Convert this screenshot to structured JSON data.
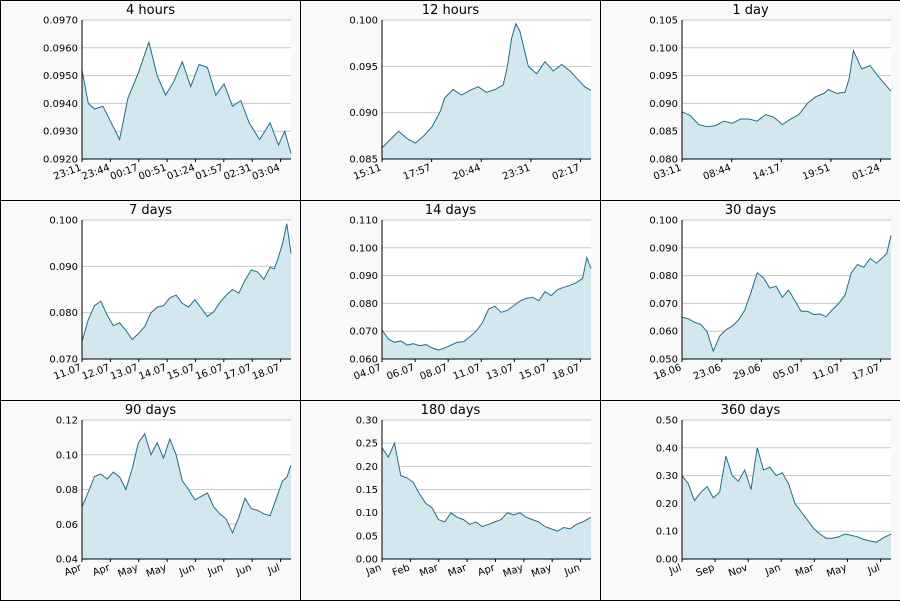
{
  "colors": {
    "line": "#1f6e8c",
    "fill": "#d4e6ee",
    "grid": "#c8c8c8",
    "plot_bg": "#f9f9f9",
    "border": "#000000"
  },
  "chart_data": [
    {
      "type": "area",
      "title": "4 hours",
      "ylim": [
        0.092,
        0.097
      ],
      "yticks": [
        "0.0920",
        "0.0930",
        "0.0940",
        "0.0950",
        "0.0960",
        "0.0970"
      ],
      "xticks": [
        "23:11",
        "23:44",
        "00:17",
        "00:51",
        "01:24",
        "01:57",
        "02:31",
        "03:04"
      ],
      "grid": true,
      "xlim": [
        0,
        100
      ],
      "series": [
        {
          "x": [
            0,
            3,
            6,
            10,
            14,
            18,
            22,
            27,
            32,
            36,
            40,
            44,
            48,
            52,
            56,
            60,
            64,
            68,
            72,
            76,
            80,
            85,
            90,
            94,
            97,
            100
          ],
          "y": [
            0.0952,
            0.094,
            0.0938,
            0.0939,
            0.0933,
            0.0927,
            0.0942,
            0.0951,
            0.0962,
            0.095,
            0.0943,
            0.0948,
            0.0955,
            0.0946,
            0.0954,
            0.0953,
            0.0943,
            0.0947,
            0.0939,
            0.0941,
            0.0933,
            0.0927,
            0.0933,
            0.0925,
            0.093,
            0.0922
          ]
        }
      ]
    },
    {
      "type": "area",
      "title": "12 hours",
      "ylim": [
        0.085,
        0.1
      ],
      "yticks": [
        "0.085",
        "0.090",
        "0.095",
        "0.100"
      ],
      "xticks": [
        "15:11",
        "17:57",
        "20:44",
        "23:31",
        "02:17"
      ],
      "grid": true,
      "xlim": [
        0,
        100
      ],
      "series": [
        {
          "x": [
            0,
            4,
            8,
            12,
            16,
            20,
            24,
            28,
            30,
            34,
            38,
            42,
            46,
            50,
            54,
            58,
            60,
            62,
            64,
            66,
            70,
            74,
            78,
            82,
            86,
            90,
            94,
            97,
            100
          ],
          "y": [
            0.0862,
            0.0871,
            0.088,
            0.0872,
            0.0867,
            0.0875,
            0.0885,
            0.0902,
            0.0916,
            0.0925,
            0.0919,
            0.0924,
            0.0928,
            0.0922,
            0.0925,
            0.093,
            0.095,
            0.098,
            0.0996,
            0.0988,
            0.095,
            0.0942,
            0.0955,
            0.0945,
            0.0952,
            0.0945,
            0.0935,
            0.0928,
            0.0924
          ]
        }
      ]
    },
    {
      "type": "area",
      "title": "1 day",
      "ylim": [
        0.08,
        0.105
      ],
      "yticks": [
        "0.080",
        "0.085",
        "0.090",
        "0.095",
        "0.100",
        "0.105"
      ],
      "xticks": [
        "03:11",
        "08:44",
        "14:17",
        "19:51",
        "01:24"
      ],
      "grid": true,
      "xlim": [
        0,
        100
      ],
      "series": [
        {
          "x": [
            0,
            4,
            8,
            12,
            16,
            20,
            24,
            28,
            32,
            36,
            40,
            44,
            48,
            52,
            56,
            60,
            64,
            68,
            70,
            74,
            78,
            80,
            82,
            86,
            90,
            94,
            97,
            100
          ],
          "y": [
            0.0885,
            0.0878,
            0.0862,
            0.0858,
            0.086,
            0.0868,
            0.0864,
            0.0872,
            0.0872,
            0.0868,
            0.088,
            0.0875,
            0.0862,
            0.0872,
            0.088,
            0.09,
            0.0912,
            0.0918,
            0.0925,
            0.0918,
            0.092,
            0.0945,
            0.0995,
            0.0962,
            0.0968,
            0.0948,
            0.0935,
            0.0922
          ]
        }
      ]
    },
    {
      "type": "area",
      "title": "7 days",
      "ylim": [
        0.07,
        0.1
      ],
      "yticks": [
        "0.070",
        "0.080",
        "0.090",
        "0.100"
      ],
      "xticks": [
        "11.07",
        "12.07",
        "13.07",
        "14.07",
        "15.07",
        "16.07",
        "17.07",
        "18.07"
      ],
      "grid": true,
      "xlim": [
        0,
        100
      ],
      "series": [
        {
          "x": [
            0,
            3,
            6,
            9,
            12,
            15,
            18,
            21,
            24,
            27,
            30,
            33,
            36,
            39,
            42,
            45,
            48,
            51,
            54,
            57,
            60,
            63,
            66,
            69,
            72,
            75,
            78,
            81,
            84,
            87,
            90,
            92,
            94,
            96,
            98,
            100
          ],
          "y": [
            0.0738,
            0.0785,
            0.0815,
            0.0825,
            0.0795,
            0.0772,
            0.0778,
            0.0762,
            0.0742,
            0.0755,
            0.077,
            0.08,
            0.0812,
            0.0815,
            0.0832,
            0.0838,
            0.082,
            0.0812,
            0.0828,
            0.081,
            0.0792,
            0.0802,
            0.0822,
            0.0838,
            0.085,
            0.0842,
            0.087,
            0.0892,
            0.0888,
            0.0872,
            0.0898,
            0.0895,
            0.092,
            0.095,
            0.0992,
            0.0928
          ]
        }
      ]
    },
    {
      "type": "area",
      "title": "14 days",
      "ylim": [
        0.06,
        0.11
      ],
      "yticks": [
        "0.060",
        "0.070",
        "0.080",
        "0.090",
        "0.100",
        "0.110"
      ],
      "xticks": [
        "04.07",
        "06.07",
        "08.07",
        "11.07",
        "13.07",
        "15.07",
        "18.07"
      ],
      "grid": true,
      "xlim": [
        0,
        100
      ],
      "series": [
        {
          "x": [
            0,
            3,
            6,
            9,
            12,
            15,
            18,
            21,
            24,
            27,
            30,
            33,
            36,
            39,
            42,
            45,
            48,
            51,
            54,
            57,
            60,
            63,
            66,
            69,
            72,
            75,
            78,
            81,
            84,
            87,
            90,
            93,
            96,
            98,
            100
          ],
          "y": [
            0.0705,
            0.0672,
            0.066,
            0.0665,
            0.065,
            0.0655,
            0.0648,
            0.0652,
            0.064,
            0.0632,
            0.064,
            0.065,
            0.066,
            0.0662,
            0.068,
            0.07,
            0.073,
            0.078,
            0.079,
            0.0768,
            0.0775,
            0.0792,
            0.0808,
            0.0818,
            0.0822,
            0.081,
            0.0842,
            0.0828,
            0.085,
            0.0858,
            0.0865,
            0.0875,
            0.089,
            0.0965,
            0.0925
          ]
        }
      ]
    },
    {
      "type": "area",
      "title": "30 days",
      "ylim": [
        0.05,
        0.1
      ],
      "yticks": [
        "0.050",
        "0.060",
        "0.070",
        "0.080",
        "0.090",
        "0.100"
      ],
      "xticks": [
        "18.06",
        "23.06",
        "29.06",
        "05.07",
        "11.07",
        "17.07"
      ],
      "grid": true,
      "xlim": [
        0,
        100
      ],
      "series": [
        {
          "x": [
            0,
            3,
            6,
            9,
            12,
            15,
            18,
            21,
            24,
            27,
            30,
            33,
            36,
            39,
            42,
            45,
            48,
            51,
            54,
            57,
            60,
            63,
            66,
            69,
            72,
            75,
            78,
            81,
            84,
            87,
            90,
            93,
            96,
            98,
            100
          ],
          "y": [
            0.065,
            0.0645,
            0.0632,
            0.0625,
            0.0598,
            0.0528,
            0.0582,
            0.0605,
            0.0618,
            0.064,
            0.0675,
            0.074,
            0.081,
            0.0792,
            0.0755,
            0.0762,
            0.0722,
            0.0748,
            0.071,
            0.0672,
            0.0672,
            0.066,
            0.0662,
            0.0652,
            0.0678,
            0.07,
            0.073,
            0.081,
            0.084,
            0.083,
            0.0862,
            0.0845,
            0.0865,
            0.088,
            0.0945
          ]
        }
      ]
    },
    {
      "type": "area",
      "title": "90 days",
      "ylim": [
        0.04,
        0.12
      ],
      "yticks": [
        "0.04",
        "0.06",
        "0.08",
        "0.10",
        "0.12"
      ],
      "xticks": [
        "Apr",
        "Apr",
        "May",
        "May",
        "Jun",
        "Jun",
        "Jun",
        "Jul"
      ],
      "grid": true,
      "xlim": [
        0,
        100
      ],
      "series": [
        {
          "x": [
            0,
            3,
            6,
            9,
            12,
            15,
            18,
            21,
            24,
            27,
            30,
            33,
            36,
            39,
            42,
            45,
            48,
            51,
            54,
            57,
            60,
            63,
            66,
            69,
            72,
            75,
            78,
            81,
            84,
            87,
            90,
            93,
            96,
            98,
            100
          ],
          "y": [
            0.07,
            0.0785,
            0.0875,
            0.089,
            0.086,
            0.09,
            0.0872,
            0.08,
            0.092,
            0.107,
            0.112,
            0.1,
            0.107,
            0.098,
            0.109,
            0.1,
            0.085,
            0.08,
            0.074,
            0.076,
            0.078,
            0.07,
            0.066,
            0.063,
            0.055,
            0.064,
            0.075,
            0.069,
            0.068,
            0.066,
            0.065,
            0.075,
            0.085,
            0.087,
            0.094
          ]
        }
      ]
    },
    {
      "type": "area",
      "title": "180 days",
      "ylim": [
        0.0,
        0.3
      ],
      "yticks": [
        "0.00",
        "0.05",
        "0.10",
        "0.15",
        "0.20",
        "0.25",
        "0.30"
      ],
      "xticks": [
        "Jan",
        "Feb",
        "Mar",
        "Mar",
        "Apr",
        "May",
        "May",
        "Jun"
      ],
      "grid": true,
      "xlim": [
        0,
        100
      ],
      "series": [
        {
          "x": [
            0,
            3,
            6,
            9,
            12,
            15,
            18,
            21,
            24,
            27,
            30,
            33,
            36,
            39,
            42,
            45,
            48,
            51,
            54,
            57,
            60,
            63,
            66,
            69,
            72,
            75,
            78,
            81,
            84,
            87,
            90,
            93,
            96,
            100
          ],
          "y": [
            0.24,
            0.22,
            0.25,
            0.18,
            0.175,
            0.165,
            0.14,
            0.12,
            0.11,
            0.085,
            0.08,
            0.1,
            0.09,
            0.085,
            0.075,
            0.08,
            0.07,
            0.075,
            0.08,
            0.085,
            0.1,
            0.095,
            0.1,
            0.09,
            0.085,
            0.08,
            0.07,
            0.065,
            0.06,
            0.068,
            0.065,
            0.075,
            0.08,
            0.09
          ]
        }
      ]
    },
    {
      "type": "area",
      "title": "360 days",
      "ylim": [
        0.0,
        0.5
      ],
      "yticks": [
        "0.00",
        "0.10",
        "0.20",
        "0.30",
        "0.40",
        "0.50"
      ],
      "xticks": [
        "Jul",
        "Sep",
        "Nov",
        "Jan",
        "Mar",
        "May",
        "Jul"
      ],
      "grid": true,
      "xlim": [
        0,
        100
      ],
      "series": [
        {
          "x": [
            0,
            3,
            6,
            9,
            12,
            15,
            18,
            21,
            24,
            27,
            30,
            33,
            36,
            39,
            42,
            45,
            48,
            51,
            54,
            57,
            60,
            63,
            66,
            69,
            72,
            75,
            78,
            81,
            84,
            87,
            90,
            93,
            96,
            100
          ],
          "y": [
            0.3,
            0.27,
            0.21,
            0.24,
            0.26,
            0.22,
            0.24,
            0.37,
            0.3,
            0.28,
            0.32,
            0.25,
            0.4,
            0.32,
            0.33,
            0.3,
            0.31,
            0.27,
            0.2,
            0.17,
            0.14,
            0.11,
            0.09,
            0.075,
            0.075,
            0.08,
            0.09,
            0.085,
            0.08,
            0.07,
            0.065,
            0.06,
            0.075,
            0.09
          ]
        }
      ]
    }
  ]
}
